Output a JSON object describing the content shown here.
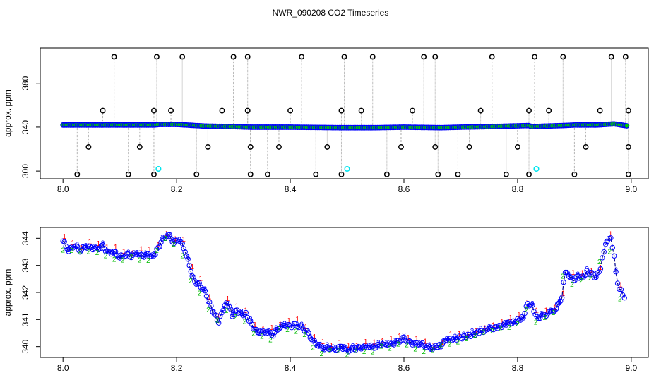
{
  "title": "NWR_090208  CO2 Timeseries",
  "colors": {
    "frame": "#000000",
    "points": "#0000ff",
    "fill": "#00cc00",
    "outlier": "#000000",
    "flagged": "#00e5ee",
    "stalk": "#aaaaaa",
    "line": "#00008b",
    "cycle1": "#ff0000",
    "cycle2": "#00bb00",
    "cycle3": "#0000ff"
  },
  "chart_data": [
    {
      "type": "scatter",
      "ylabel": "approx. ppm",
      "xlabel": "",
      "xlim": [
        7.96,
        9.03
      ],
      "ylim": [
        293,
        412
      ],
      "x_ticks": [
        "8.0",
        "8.2",
        "8.4",
        "8.6",
        "8.8",
        "9.0"
      ],
      "y_ticks": [
        "300",
        "340",
        "380"
      ],
      "grid": false,
      "baseline": [
        [
          8.0,
          342.0
        ],
        [
          8.05,
          342.0
        ],
        [
          8.1,
          342.0
        ],
        [
          8.16,
          342.0
        ],
        [
          8.17,
          342.5
        ],
        [
          8.2,
          342.5
        ],
        [
          8.25,
          341.0
        ],
        [
          8.3,
          340.5
        ],
        [
          8.33,
          340.0
        ],
        [
          8.4,
          340.0
        ],
        [
          8.49,
          339.5
        ],
        [
          8.5,
          339.5
        ],
        [
          8.55,
          339.5
        ],
        [
          8.6,
          340.0
        ],
        [
          8.665,
          339.5
        ],
        [
          8.7,
          340.0
        ],
        [
          8.75,
          340.5
        ],
        [
          8.82,
          341.5
        ],
        [
          8.825,
          340.5
        ],
        [
          8.85,
          341.0
        ],
        [
          8.88,
          341.5
        ],
        [
          8.9,
          342.0
        ],
        [
          8.94,
          342.0
        ],
        [
          8.97,
          343.0
        ],
        [
          8.995,
          341.0
        ]
      ],
      "outliers_high": [
        8.09,
        8.165,
        8.21,
        8.3,
        8.325,
        8.42,
        8.495,
        8.545,
        8.635,
        8.655,
        8.755,
        8.83,
        8.88,
        8.965,
        8.99
      ],
      "outliers_low": [
        8.025,
        8.115,
        8.16,
        8.235,
        8.33,
        8.36,
        8.445,
        8.49,
        8.57,
        8.66,
        8.695,
        8.78,
        8.82,
        8.9,
        8.995
      ],
      "outliers_mid_high": [
        8.07,
        8.16,
        8.19,
        8.28,
        8.325,
        8.4,
        8.49,
        8.525,
        8.615,
        8.735,
        8.82,
        8.855,
        8.945,
        8.995
      ],
      "outliers_mid_low": [
        8.045,
        8.135,
        8.255,
        8.33,
        8.38,
        8.465,
        8.595,
        8.655,
        8.715,
        8.8,
        8.92,
        8.995
      ],
      "flagged": [
        [
          8.168,
          302
        ],
        [
          8.5,
          302
        ],
        [
          8.833,
          302
        ]
      ]
    },
    {
      "type": "line",
      "ylabel": "approx. ppm",
      "xlabel": "",
      "xlim": [
        7.96,
        9.03
      ],
      "ylim": [
        339.6,
        344.4
      ],
      "x_ticks": [
        "8.0",
        "8.2",
        "8.4",
        "8.6",
        "8.8",
        "9.0"
      ],
      "y_ticks": [
        "340",
        "341",
        "342",
        "343",
        "344"
      ],
      "grid": false,
      "point_labels": [
        "1",
        "2",
        "3"
      ],
      "series": [
        [
          8.0,
          343.9
        ],
        [
          8.01,
          343.55
        ],
        [
          8.02,
          343.75
        ],
        [
          8.03,
          343.55
        ],
        [
          8.04,
          343.7
        ],
        [
          8.05,
          343.65
        ],
        [
          8.06,
          343.6
        ],
        [
          8.07,
          343.7
        ],
        [
          8.08,
          343.45
        ],
        [
          8.09,
          343.5
        ],
        [
          8.1,
          343.3
        ],
        [
          8.11,
          343.4
        ],
        [
          8.12,
          343.35
        ],
        [
          8.13,
          343.45
        ],
        [
          8.14,
          343.35
        ],
        [
          8.15,
          343.4
        ],
        [
          8.16,
          343.3
        ],
        [
          8.165,
          343.55
        ],
        [
          8.175,
          343.95
        ],
        [
          8.185,
          344.15
        ],
        [
          8.195,
          343.85
        ],
        [
          8.205,
          343.95
        ],
        [
          8.215,
          343.55
        ],
        [
          8.225,
          342.8
        ],
        [
          8.232,
          342.4
        ],
        [
          8.24,
          342.3
        ],
        [
          8.25,
          342.0
        ],
        [
          8.258,
          341.6
        ],
        [
          8.266,
          341.2
        ],
        [
          8.274,
          340.9
        ],
        [
          8.282,
          341.4
        ],
        [
          8.29,
          341.65
        ],
        [
          8.298,
          341.15
        ],
        [
          8.306,
          341.35
        ],
        [
          8.314,
          341.2
        ],
        [
          8.322,
          341.2
        ],
        [
          8.33,
          340.9
        ],
        [
          8.338,
          340.6
        ],
        [
          8.35,
          340.5
        ],
        [
          8.36,
          340.55
        ],
        [
          8.37,
          340.45
        ],
        [
          8.38,
          340.7
        ],
        [
          8.39,
          340.8
        ],
        [
          8.4,
          340.75
        ],
        [
          8.41,
          340.8
        ],
        [
          8.42,
          340.7
        ],
        [
          8.43,
          340.55
        ],
        [
          8.44,
          340.2
        ],
        [
          8.45,
          340.05
        ],
        [
          8.46,
          339.95
        ],
        [
          8.47,
          339.95
        ],
        [
          8.48,
          339.9
        ],
        [
          8.49,
          340.0
        ],
        [
          8.5,
          339.85
        ],
        [
          8.51,
          339.9
        ],
        [
          8.52,
          339.95
        ],
        [
          8.53,
          340.0
        ],
        [
          8.54,
          340.0
        ],
        [
          8.55,
          340.0
        ],
        [
          8.56,
          340.1
        ],
        [
          8.57,
          340.1
        ],
        [
          8.58,
          340.1
        ],
        [
          8.59,
          340.2
        ],
        [
          8.6,
          340.3
        ],
        [
          8.61,
          340.15
        ],
        [
          8.62,
          340.1
        ],
        [
          8.63,
          340.1
        ],
        [
          8.64,
          340.0
        ],
        [
          8.65,
          339.95
        ],
        [
          8.665,
          340.05
        ],
        [
          8.675,
          340.25
        ],
        [
          8.69,
          340.3
        ],
        [
          8.705,
          340.35
        ],
        [
          8.72,
          340.45
        ],
        [
          8.735,
          340.55
        ],
        [
          8.75,
          340.65
        ],
        [
          8.765,
          340.7
        ],
        [
          8.78,
          340.85
        ],
        [
          8.795,
          340.9
        ],
        [
          8.81,
          341.1
        ],
        [
          8.818,
          341.6
        ],
        [
          8.826,
          341.5
        ],
        [
          8.834,
          341.05
        ],
        [
          8.845,
          341.15
        ],
        [
          8.858,
          341.25
        ],
        [
          8.868,
          341.4
        ],
        [
          8.878,
          341.85
        ],
        [
          8.884,
          342.8
        ],
        [
          8.89,
          342.65
        ],
        [
          8.898,
          342.45
        ],
        [
          8.906,
          342.6
        ],
        [
          8.914,
          342.55
        ],
        [
          8.922,
          342.75
        ],
        [
          8.93,
          342.7
        ],
        [
          8.938,
          342.55
        ],
        [
          8.946,
          342.9
        ],
        [
          8.952,
          343.55
        ],
        [
          8.958,
          343.95
        ],
        [
          8.964,
          344.05
        ],
        [
          8.97,
          343.35
        ],
        [
          8.976,
          342.3
        ],
        [
          8.982,
          342.05
        ],
        [
          8.988,
          341.8
        ]
      ]
    }
  ]
}
